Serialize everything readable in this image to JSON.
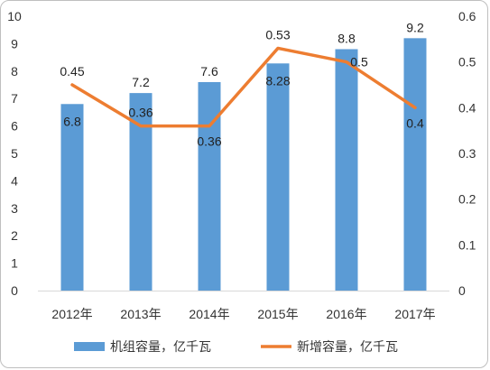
{
  "chart_data": {
    "type": "bar+line",
    "categories": [
      "2012年",
      "2013年",
      "2014年",
      "2015年",
      "2016年",
      "2017年"
    ],
    "series": [
      {
        "name": "机组容量，亿千瓦",
        "type": "bar",
        "axis": "left",
        "values": [
          6.8,
          7.2,
          7.6,
          8.28,
          8.8,
          9.2
        ],
        "labels": [
          "6.8",
          "7.2",
          "7.6",
          "8.28",
          "8.8",
          "9.2"
        ],
        "color": "#5b9bd5"
      },
      {
        "name": "新增容量，亿千瓦",
        "type": "line",
        "axis": "right",
        "values": [
          0.45,
          0.36,
          0.36,
          0.53,
          0.5,
          0.4
        ],
        "labels": [
          "0.45",
          "0.36",
          "0.36",
          "0.53",
          "0.5",
          "0.4"
        ],
        "color": "#ed7d31"
      }
    ],
    "y_left": {
      "min": 0,
      "max": 10,
      "ticks": [
        "0",
        "1",
        "2",
        "3",
        "4",
        "5",
        "6",
        "7",
        "8",
        "9",
        "10"
      ]
    },
    "y_right": {
      "min": 0,
      "max": 0.6,
      "ticks": [
        "0",
        "0.1",
        "0.2",
        "0.3",
        "0.4",
        "0.5",
        "0.6"
      ]
    },
    "grid": false,
    "legend_position": "bottom"
  }
}
